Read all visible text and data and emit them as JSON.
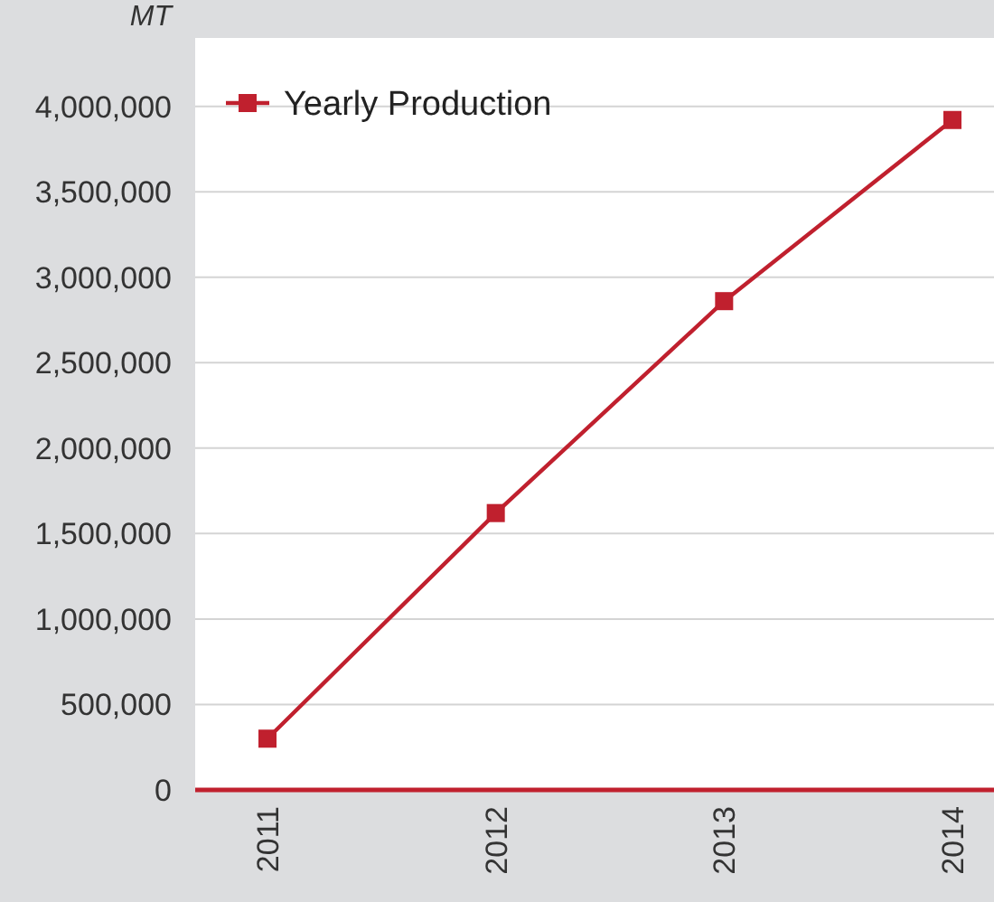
{
  "chart_data": {
    "type": "line",
    "ylabel": "MT",
    "categories": [
      "2011",
      "2012",
      "2013",
      "2014"
    ],
    "series": [
      {
        "name": "Yearly Production",
        "color": "#c0202e",
        "values": [
          300000,
          1620000,
          2860000,
          3920000
        ]
      }
    ],
    "ylim": [
      0,
      4400000
    ],
    "yticks": [
      {
        "value": 0,
        "label": "0"
      },
      {
        "value": 500000,
        "label": "500,000"
      },
      {
        "value": 1000000,
        "label": "1,000,000"
      },
      {
        "value": 1500000,
        "label": "1,500,000"
      },
      {
        "value": 2000000,
        "label": "2,000,000"
      },
      {
        "value": 2500000,
        "label": "2,500,000"
      },
      {
        "value": 3000000,
        "label": "3,000,000"
      },
      {
        "value": 3500000,
        "label": "3,500,000"
      },
      {
        "value": 4000000,
        "label": "4,000,000"
      }
    ],
    "grid": "y",
    "legend": "top left",
    "marker": "square",
    "line_style": "solid"
  }
}
